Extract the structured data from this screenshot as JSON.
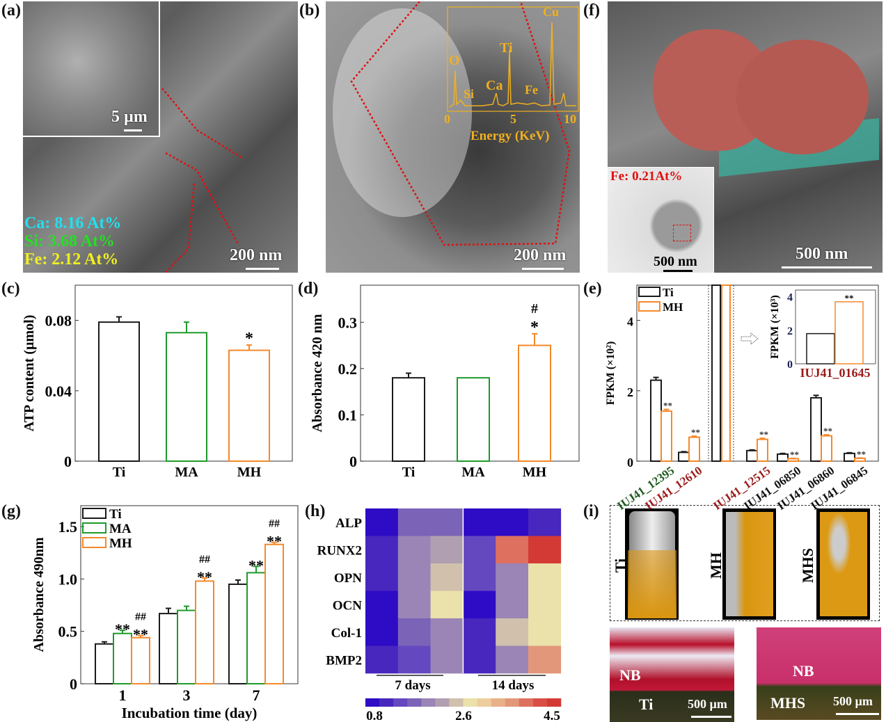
{
  "panels": {
    "a": {
      "label": "(a)",
      "inset_scale": "5 µm",
      "scale": "200 nm",
      "composition": [
        {
          "text": "Ca: 8.16 At%",
          "color": "#1fe0f0"
        },
        {
          "text": "Si: 3.68 At%",
          "color": "#22e022"
        },
        {
          "text": "Fe: 2.12 At%",
          "color": "#f0f020"
        }
      ]
    },
    "b": {
      "label": "(b)",
      "scale": "200 nm",
      "eds": {
        "color": "#f0b020",
        "peaks": [
          "O",
          "Si",
          "Ca",
          "Ti",
          "Fe",
          "Cu"
        ],
        "x_ticks": [
          "0",
          "5",
          "10"
        ],
        "xlabel": "Energy (KeV)"
      }
    },
    "f": {
      "label": "(f)",
      "scale": "500 nm",
      "inset_scale": "500 nm",
      "inset_text": "Fe:  0.21At%"
    },
    "c": {
      "label": "(c)"
    },
    "d": {
      "label": "(d)"
    },
    "e": {
      "label": "(e)"
    },
    "g": {
      "label": "(g)"
    },
    "h": {
      "label": "(h)"
    },
    "i": {
      "label": "(i)",
      "ct_labels": [
        "Ti",
        "MH",
        "MHS"
      ],
      "histology": [
        {
          "region": "NB",
          "sample": "Ti",
          "scale": "500 µm"
        },
        {
          "region": "NB",
          "sample": "MHS",
          "scale": "500 µm"
        }
      ]
    }
  },
  "colors": {
    "Ti": "#1a1a1a",
    "MA": "#1f9a2a",
    "MH": "#f5892a",
    "green_label": "#1e5a1e",
    "red_label": "#9a1a1a"
  },
  "chart_data": [
    {
      "id": "c",
      "type": "bar",
      "categories": [
        "Ti",
        "MA",
        "MH"
      ],
      "values": [
        0.079,
        0.073,
        0.063
      ],
      "errors": [
        0.003,
        0.006,
        0.003
      ],
      "annotations": [
        "",
        "",
        "*"
      ],
      "ylabel": "ATP content (µmol)",
      "xlabel": "",
      "ylim": [
        0,
        0.1
      ],
      "yticks": [
        "0",
        "0.04",
        "0.08"
      ],
      "ytick_values": [
        0,
        0.04,
        0.08
      ]
    },
    {
      "id": "d",
      "type": "bar",
      "categories": [
        "Ti",
        "MA",
        "MH"
      ],
      "values": [
        0.18,
        0.18,
        0.25
      ],
      "errors": [
        0.01,
        0,
        0.025
      ],
      "annotations": [
        "",
        "",
        "*"
      ],
      "annotations2": [
        "",
        "",
        "#"
      ],
      "ylabel": "Absorbance 420 nm",
      "xlabel": "",
      "ylim": [
        0,
        0.38
      ],
      "yticks": [
        "0",
        "0.1",
        "0.2",
        "0.3"
      ],
      "ytick_values": [
        0,
        0.1,
        0.2,
        0.3
      ]
    },
    {
      "id": "e",
      "type": "bar",
      "ylabel": "FPKM (×10²)",
      "ylim": [
        0,
        5
      ],
      "yticks": [
        "0",
        "2",
        "4"
      ],
      "ytick_values": [
        0,
        2,
        4
      ],
      "legend": [
        "Ti",
        "MH"
      ],
      "legend_position": "top-left",
      "groups": [
        {
          "label": "IUJ41_12395",
          "label_color": "green",
          "Ti": 2.3,
          "MH": 1.42,
          "Ti_err": 0.08,
          "MH_err": 0.05,
          "sig": "**"
        },
        {
          "label": "IUJ41_12610",
          "label_color": "red",
          "Ti": 0.25,
          "MH": 0.68,
          "Ti_err": 0.02,
          "MH_err": 0.03,
          "sig": "**"
        },
        {
          "label": "",
          "label_color": "black",
          "Ti": 18,
          "MH": 37,
          "offscale": true,
          "sig": ""
        },
        {
          "label": "IUJ41_12515",
          "label_color": "red",
          "Ti": 0.3,
          "MH": 0.62,
          "Ti_err": 0.02,
          "MH_err": 0.03,
          "sig": "**"
        },
        {
          "label": "IUJ41_06850",
          "label_color": "black",
          "Ti": 0.2,
          "MH": 0.07,
          "Ti_err": 0.02,
          "MH_err": 0.01,
          "sig": "**"
        },
        {
          "label": "IUJ41_06860",
          "label_color": "black",
          "Ti": 1.8,
          "MH": 0.72,
          "Ti_err": 0.07,
          "MH_err": 0.03,
          "sig": "**"
        },
        {
          "label": "IUJ41_06845",
          "label_color": "black",
          "Ti": 0.22,
          "MH": 0.08,
          "Ti_err": 0.02,
          "MH_err": 0.01,
          "sig": "**"
        }
      ],
      "inset": {
        "category": "IUJ41_01645",
        "ylabel": "FPKM (×10³)",
        "Ti": 1.8,
        "MH": 3.7,
        "sig": "**",
        "ylim": [
          0,
          4.4
        ],
        "yticks": [
          "0",
          "2",
          "4"
        ],
        "ytick_values": [
          0,
          2,
          4
        ]
      }
    },
    {
      "id": "g",
      "type": "bar",
      "categories": [
        "1",
        "3",
        "7"
      ],
      "series": [
        {
          "name": "Ti",
          "values": [
            0.38,
            0.67,
            0.95
          ],
          "errors": [
            0.02,
            0.05,
            0.04
          ],
          "annotations": [
            "",
            "",
            ""
          ]
        },
        {
          "name": "MA",
          "values": [
            0.48,
            0.7,
            1.06
          ],
          "errors": [
            0.03,
            0.04,
            0.06
          ],
          "annotations": [
            "**",
            "",
            "**"
          ]
        },
        {
          "name": "MH",
          "values": [
            0.44,
            0.98,
            1.33
          ],
          "errors": [
            0.02,
            0.03,
            0.02
          ],
          "annotations": [
            "**",
            "**",
            "**"
          ],
          "annotations2": [
            "##",
            "##",
            "##"
          ]
        }
      ],
      "xlabel": "Incubation time (day)",
      "ylabel": "Absorbance 490nm",
      "ylim": [
        0,
        1.7
      ],
      "yticks": [
        "0",
        "0.5",
        "1.0",
        "1.5"
      ],
      "ytick_values": [
        0,
        0.5,
        1.0,
        1.5
      ],
      "legend_position": "top-left"
    },
    {
      "id": "h",
      "type": "heatmap",
      "rows": [
        "ALP",
        "RUNX2",
        "OPN",
        "OCN",
        "Col-1",
        "BMP2"
      ],
      "column_groups": [
        "7 days",
        "14 days"
      ],
      "values": [
        [
          0.8,
          1.7,
          1.7,
          0.8,
          0.8,
          1.1
        ],
        [
          1.1,
          2.0,
          2.3,
          1.4,
          4.0,
          4.5
        ],
        [
          1.1,
          2.0,
          2.5,
          1.4,
          2.0,
          2.8
        ],
        [
          0.8,
          2.0,
          2.8,
          0.8,
          2.0,
          2.8
        ],
        [
          0.8,
          1.7,
          2.0,
          1.1,
          2.5,
          2.8
        ],
        [
          1.1,
          1.4,
          2.0,
          1.1,
          2.0,
          3.7
        ]
      ],
      "colorbar": {
        "min": 0.8,
        "max": 4.5,
        "ticks": [
          "0.8",
          "2.6",
          "4.5"
        ],
        "colors": [
          "#2e0bc4",
          "#4727be",
          "#6448c0",
          "#7b63b8",
          "#9a85b6",
          "#b09fb0",
          "#d0c0ac",
          "#ebe1ab",
          "#edcd9e",
          "#e9b187",
          "#e3977a",
          "#de7060",
          "#d94f47",
          "#d43a35"
        ]
      }
    }
  ]
}
